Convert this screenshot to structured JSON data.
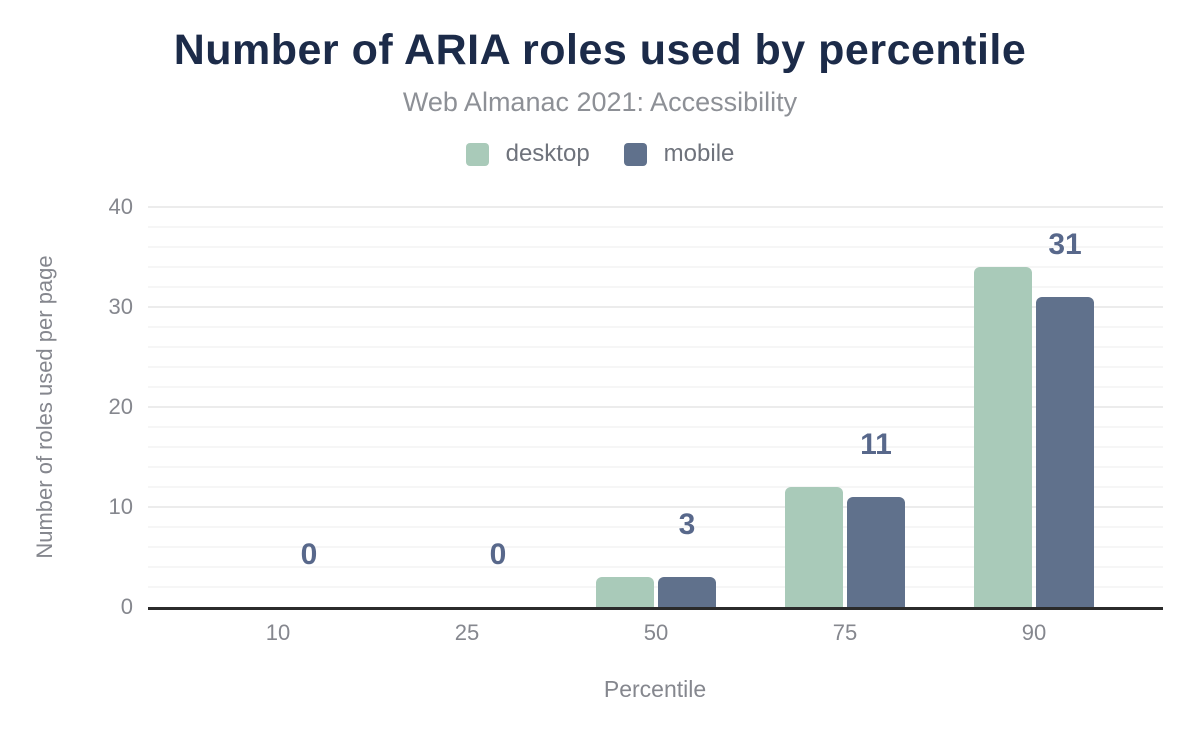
{
  "header": {
    "title": "Number of ARIA roles used by percentile",
    "subtitle": "Web Almanac 2021: Accessibility"
  },
  "legend": {
    "items": [
      {
        "label": "desktop",
        "color": "#a9cab9"
      },
      {
        "label": "mobile",
        "color": "#60718c"
      }
    ]
  },
  "chart_data": {
    "type": "bar",
    "title": "Number of ARIA roles used by percentile",
    "subtitle": "Web Almanac 2021: Accessibility",
    "categories": [
      "10",
      "25",
      "50",
      "75",
      "90"
    ],
    "series": [
      {
        "name": "desktop",
        "color": "#a9cab9",
        "values": [
          0,
          0,
          3,
          12,
          34
        ]
      },
      {
        "name": "mobile",
        "color": "#60718c",
        "values": [
          0,
          0,
          3,
          11,
          31
        ]
      }
    ],
    "data_labels": {
      "on_series": "mobile",
      "values": [
        "0",
        "0",
        "3",
        "11",
        "31"
      ],
      "color": "#58688b"
    },
    "xlabel": "Percentile",
    "ylabel": "Number of roles used per page",
    "ylim": [
      0,
      40
    ],
    "yticks": [
      "0",
      "10",
      "20",
      "30",
      "40"
    ],
    "legend_position": "top",
    "grid": {
      "minor_step": 2,
      "major_step": 10,
      "minor_color": "#f6f6f6",
      "major_color": "#ececec"
    },
    "axis_line_color": "#2b2b2b",
    "text_colors": {
      "title": "#1c2b49",
      "subtitle": "#8d9096",
      "axis": "#85878e",
      "legend": "#6f737c"
    }
  }
}
